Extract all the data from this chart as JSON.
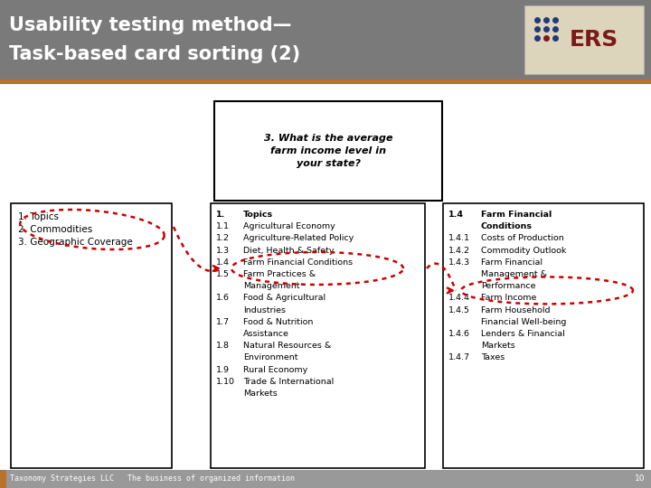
{
  "title_line1": "Usability testing method—",
  "title_line2": "Task-based card sorting (2)",
  "title_bg": "#7a7a7a",
  "title_color": "#ffffff",
  "accent_color": "#b8722a",
  "footer_text": "Taxonomy Strategies LLC   The business of organized information",
  "footer_page": "10",
  "footer_bg": "#999999",
  "question_text": "3. What is the average\nfarm income level in\nyour state?",
  "box1_lines": [
    [
      "1.",
      " Topics"
    ],
    [
      "2.",
      " Commodities"
    ],
    [
      "3.",
      " Geographic Coverage"
    ]
  ],
  "box2_lines": [
    [
      "1.",
      "Topics",
      true
    ],
    [
      "1.1",
      "Agricultural Economy",
      false
    ],
    [
      "1.2",
      "Agriculture-Related Policy",
      false
    ],
    [
      "1.3",
      "Diet, Health & Safety",
      false
    ],
    [
      "1.4",
      "Farm Financial Conditions",
      false
    ],
    [
      "1.5",
      "Farm Practices &",
      false
    ],
    [
      "",
      "Management",
      false
    ],
    [
      "1.6",
      "Food & Agricultural",
      false
    ],
    [
      "",
      "Industries",
      false
    ],
    [
      "1.7",
      "Food & Nutrition",
      false
    ],
    [
      "",
      "Assistance",
      false
    ],
    [
      "1.8",
      "Natural Resources &",
      false
    ],
    [
      "",
      "Environment",
      false
    ],
    [
      "1.9",
      "Rural Economy",
      false
    ],
    [
      "1.10",
      "Trade & International",
      false
    ],
    [
      "",
      "Markets",
      false
    ]
  ],
  "box3_lines": [
    [
      "1.4",
      "Farm Financial",
      true
    ],
    [
      "",
      "Conditions",
      true
    ],
    [
      "1.4.1",
      "Costs of Production",
      false
    ],
    [
      "1.4.2",
      "Commodity Outlook",
      false
    ],
    [
      "1.4.3",
      "Farm Financial",
      false
    ],
    [
      "",
      "Management &",
      false
    ],
    [
      "",
      "Performance",
      false
    ],
    [
      "1.4.4",
      "Farm Income",
      false
    ],
    [
      "1.4.5",
      "Farm Household",
      false
    ],
    [
      "",
      "Financial Well-being",
      false
    ],
    [
      "1.4.6",
      "Lenders & Financial",
      false
    ],
    [
      "",
      "Markets",
      false
    ],
    [
      "1.4.7",
      "Taxes",
      false
    ]
  ],
  "bg_color": "#ffffff",
  "content_bg": "#f0f0f0"
}
